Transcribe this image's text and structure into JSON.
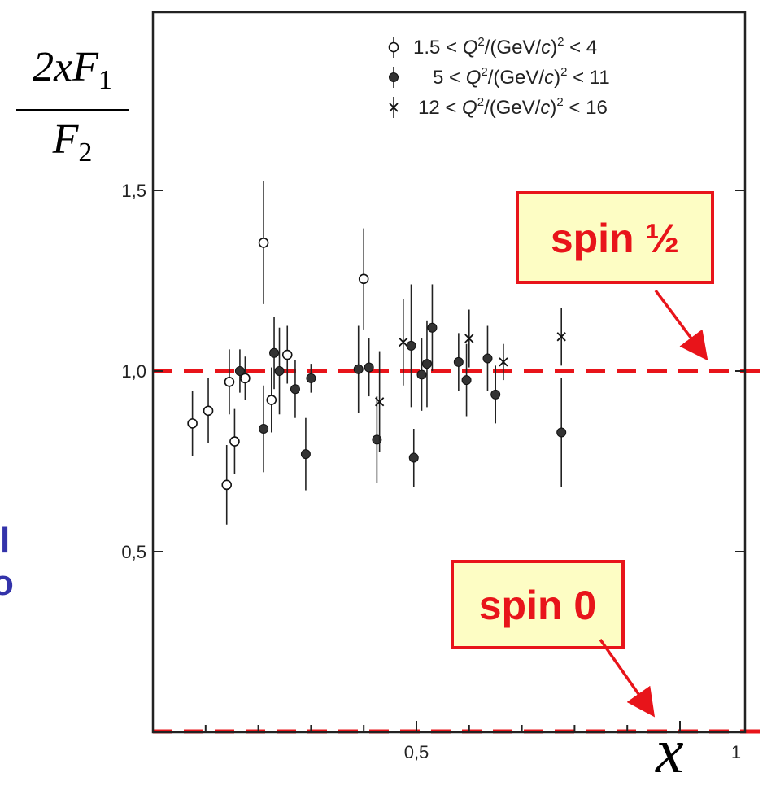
{
  "chart_data": {
    "type": "scatter",
    "ylabel": {
      "numerator": "2xF",
      "numerator_sub": "1",
      "denominator": "F",
      "denominator_sub": "2"
    },
    "xlabel": "x",
    "xlim": [
      0,
      1.0
    ],
    "ylim": [
      0,
      2.0
    ],
    "x_ticks": [
      {
        "value": 0.5,
        "label": "0,5"
      },
      {
        "value": 1.0,
        "label": "1"
      }
    ],
    "y_ticks": [
      {
        "value": 0.5,
        "label": "0,5"
      },
      {
        "value": 1.0,
        "label": "1,0"
      },
      {
        "value": 1.5,
        "label": "1,5"
      }
    ],
    "reference_lines": [
      {
        "y": 1.0,
        "label": "spin ½",
        "color": "#e8141a"
      },
      {
        "y": 0.0,
        "label": "spin 0",
        "color": "#e8141a"
      }
    ],
    "legend": {
      "placement": "top-right",
      "entries": [
        {
          "symbol": "open-circle",
          "text_pre": "1.5 < ",
          "text_var": "Q",
          "text_sup": "2",
          "text_mid": "/(GeV/",
          "text_var2": "c",
          "text_post": ")",
          "text_sup2": "2",
          "text_end": " < 4"
        },
        {
          "symbol": "filled-circle",
          "text_pre": "5 < ",
          "text_var": "Q",
          "text_sup": "2",
          "text_mid": "/(GeV/",
          "text_var2": "c",
          "text_post": ")",
          "text_sup2": "2",
          "text_end": " < 11"
        },
        {
          "symbol": "cross",
          "text_pre": "12 < ",
          "text_var": "Q",
          "text_sup": "2",
          "text_mid": "/(GeV/",
          "text_var2": "c",
          "text_post": ")",
          "text_sup2": "2",
          "text_end": " < 16"
        }
      ]
    },
    "series": [
      {
        "symbol": "open-circle",
        "points": [
          {
            "x": 0.075,
            "y": 0.855,
            "err": 0.09
          },
          {
            "x": 0.105,
            "y": 0.89,
            "err": 0.09
          },
          {
            "x": 0.14,
            "y": 0.685,
            "err": 0.11
          },
          {
            "x": 0.145,
            "y": 0.97,
            "err": 0.09
          },
          {
            "x": 0.155,
            "y": 0.805,
            "err": 0.09
          },
          {
            "x": 0.175,
            "y": 0.98,
            "err": 0.06
          },
          {
            "x": 0.21,
            "y": 1.355,
            "err": 0.17
          },
          {
            "x": 0.225,
            "y": 0.92,
            "err": 0.09
          },
          {
            "x": 0.255,
            "y": 1.045,
            "err": 0.08
          },
          {
            "x": 0.4,
            "y": 1.255,
            "err": 0.14
          }
        ]
      },
      {
        "symbol": "filled-circle",
        "points": [
          {
            "x": 0.165,
            "y": 1.0,
            "err": 0.06
          },
          {
            "x": 0.21,
            "y": 0.84,
            "err": 0.12
          },
          {
            "x": 0.23,
            "y": 1.05,
            "err": 0.1
          },
          {
            "x": 0.24,
            "y": 1.0,
            "err": 0.12
          },
          {
            "x": 0.27,
            "y": 0.95,
            "err": 0.08
          },
          {
            "x": 0.29,
            "y": 0.77,
            "err": 0.1
          },
          {
            "x": 0.3,
            "y": 0.98,
            "err": 0.04
          },
          {
            "x": 0.39,
            "y": 1.005,
            "err": 0.12
          },
          {
            "x": 0.41,
            "y": 1.01,
            "err": 0.08
          },
          {
            "x": 0.425,
            "y": 0.81,
            "err": 0.12
          },
          {
            "x": 0.49,
            "y": 1.07,
            "err": 0.17
          },
          {
            "x": 0.495,
            "y": 0.76,
            "err": 0.08
          },
          {
            "x": 0.51,
            "y": 0.99,
            "err": 0.1
          },
          {
            "x": 0.52,
            "y": 1.02,
            "err": 0.12
          },
          {
            "x": 0.53,
            "y": 1.12,
            "err": 0.12
          },
          {
            "x": 0.58,
            "y": 1.025,
            "err": 0.08
          },
          {
            "x": 0.595,
            "y": 0.975,
            "err": 0.1
          },
          {
            "x": 0.635,
            "y": 1.035,
            "err": 0.09
          },
          {
            "x": 0.65,
            "y": 0.935,
            "err": 0.08
          },
          {
            "x": 0.775,
            "y": 0.83,
            "err": 0.15
          }
        ]
      },
      {
        "symbol": "cross",
        "points": [
          {
            "x": 0.43,
            "y": 0.915,
            "err": 0.14
          },
          {
            "x": 0.475,
            "y": 1.08,
            "err": 0.12
          },
          {
            "x": 0.6,
            "y": 1.09,
            "err": 0.08
          },
          {
            "x": 0.665,
            "y": 1.025,
            "err": 0.05
          },
          {
            "x": 0.775,
            "y": 1.095,
            "err": 0.08
          }
        ]
      }
    ]
  },
  "side_text": [
    "l",
    "o"
  ]
}
